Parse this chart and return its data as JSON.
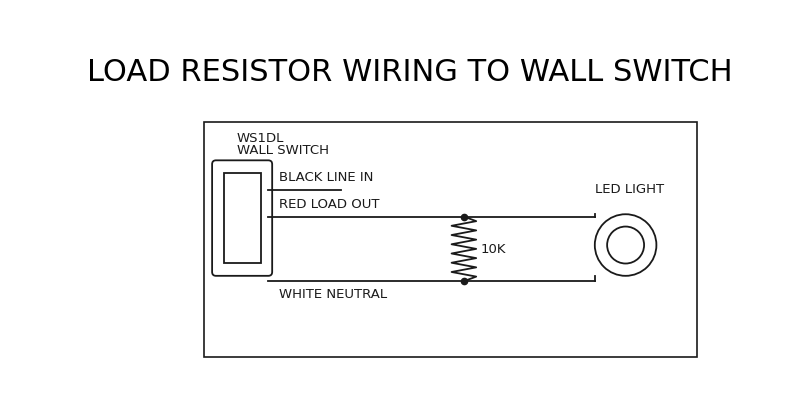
{
  "title": "LOAD RESISTOR WIRING TO WALL SWITCH",
  "title_fontsize": 22,
  "title_font_weight": "normal",
  "bg_color": "#ffffff",
  "line_color": "#1a1a1a",
  "switch_label_line1": "WS1DL",
  "switch_label_line2": "WALL SWITCH",
  "label_black": "BLACK LINE IN",
  "label_red": "RED LOAD OUT",
  "label_white": "WHITE NEUTRAL",
  "label_led": "LED LIGHT",
  "label_10k": "10K",
  "font_size_labels": 9.5
}
